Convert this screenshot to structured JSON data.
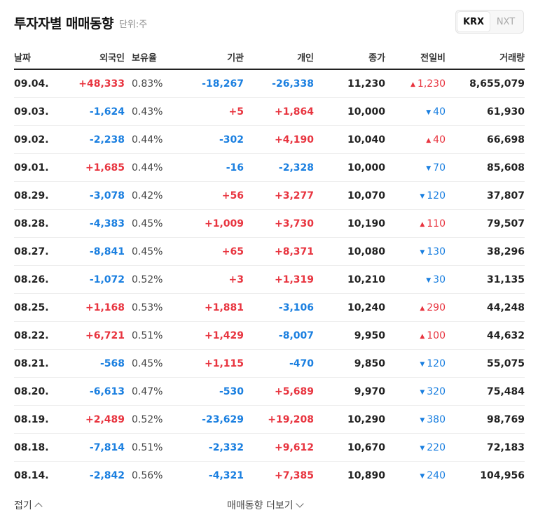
{
  "header": {
    "title": "투자자별 매매동향",
    "unit": "단위:주"
  },
  "market_toggle": {
    "options": [
      "KRX",
      "NXT"
    ],
    "selected": "KRX"
  },
  "columns": [
    "날짜",
    "외국인",
    "보유율",
    "기관",
    "개인",
    "종가",
    "전일비",
    "거래량"
  ],
  "rows": [
    {
      "date": "09.04.",
      "foreign": "+48,333",
      "hold": "0.83%",
      "inst": "-18,267",
      "indiv": "-26,338",
      "close": "11,230",
      "dir": "up",
      "chg": "1,230",
      "vol": "8,655,079"
    },
    {
      "date": "09.03.",
      "foreign": "-1,624",
      "hold": "0.43%",
      "inst": "+5",
      "indiv": "+1,864",
      "close": "10,000",
      "dir": "down",
      "chg": "40",
      "vol": "61,930"
    },
    {
      "date": "09.02.",
      "foreign": "-2,238",
      "hold": "0.44%",
      "inst": "-302",
      "indiv": "+4,190",
      "close": "10,040",
      "dir": "up",
      "chg": "40",
      "vol": "66,698"
    },
    {
      "date": "09.01.",
      "foreign": "+1,685",
      "hold": "0.44%",
      "inst": "-16",
      "indiv": "-2,328",
      "close": "10,000",
      "dir": "down",
      "chg": "70",
      "vol": "85,608"
    },
    {
      "date": "08.29.",
      "foreign": "-3,078",
      "hold": "0.42%",
      "inst": "+56",
      "indiv": "+3,277",
      "close": "10,070",
      "dir": "down",
      "chg": "120",
      "vol": "37,807"
    },
    {
      "date": "08.28.",
      "foreign": "-4,383",
      "hold": "0.45%",
      "inst": "+1,009",
      "indiv": "+3,730",
      "close": "10,190",
      "dir": "up",
      "chg": "110",
      "vol": "79,507"
    },
    {
      "date": "08.27.",
      "foreign": "-8,841",
      "hold": "0.45%",
      "inst": "+65",
      "indiv": "+8,371",
      "close": "10,080",
      "dir": "down",
      "chg": "130",
      "vol": "38,296"
    },
    {
      "date": "08.26.",
      "foreign": "-1,072",
      "hold": "0.52%",
      "inst": "+3",
      "indiv": "+1,319",
      "close": "10,210",
      "dir": "down",
      "chg": "30",
      "vol": "31,135"
    },
    {
      "date": "08.25.",
      "foreign": "+1,168",
      "hold": "0.53%",
      "inst": "+1,881",
      "indiv": "-3,106",
      "close": "10,240",
      "dir": "up",
      "chg": "290",
      "vol": "44,248"
    },
    {
      "date": "08.22.",
      "foreign": "+6,721",
      "hold": "0.51%",
      "inst": "+1,429",
      "indiv": "-8,007",
      "close": "9,950",
      "dir": "up",
      "chg": "100",
      "vol": "44,632"
    },
    {
      "date": "08.21.",
      "foreign": "-568",
      "hold": "0.45%",
      "inst": "+1,115",
      "indiv": "-470",
      "close": "9,850",
      "dir": "down",
      "chg": "120",
      "vol": "55,075"
    },
    {
      "date": "08.20.",
      "foreign": "-6,613",
      "hold": "0.47%",
      "inst": "-530",
      "indiv": "+5,689",
      "close": "9,970",
      "dir": "down",
      "chg": "320",
      "vol": "75,484"
    },
    {
      "date": "08.19.",
      "foreign": "+2,489",
      "hold": "0.52%",
      "inst": "-23,629",
      "indiv": "+19,208",
      "close": "10,290",
      "dir": "down",
      "chg": "380",
      "vol": "98,769"
    },
    {
      "date": "08.18.",
      "foreign": "-7,814",
      "hold": "0.51%",
      "inst": "-2,332",
      "indiv": "+9,612",
      "close": "10,670",
      "dir": "down",
      "chg": "220",
      "vol": "72,183"
    },
    {
      "date": "08.14.",
      "foreign": "-2,842",
      "hold": "0.56%",
      "inst": "-4,321",
      "indiv": "+7,385",
      "close": "10,890",
      "dir": "down",
      "chg": "240",
      "vol": "104,956"
    }
  ],
  "footer": {
    "fold_label": "접기",
    "more_label": "매매동향 더보기"
  },
  "colors": {
    "up": "#e8343f",
    "down": "#1a7fe0"
  }
}
